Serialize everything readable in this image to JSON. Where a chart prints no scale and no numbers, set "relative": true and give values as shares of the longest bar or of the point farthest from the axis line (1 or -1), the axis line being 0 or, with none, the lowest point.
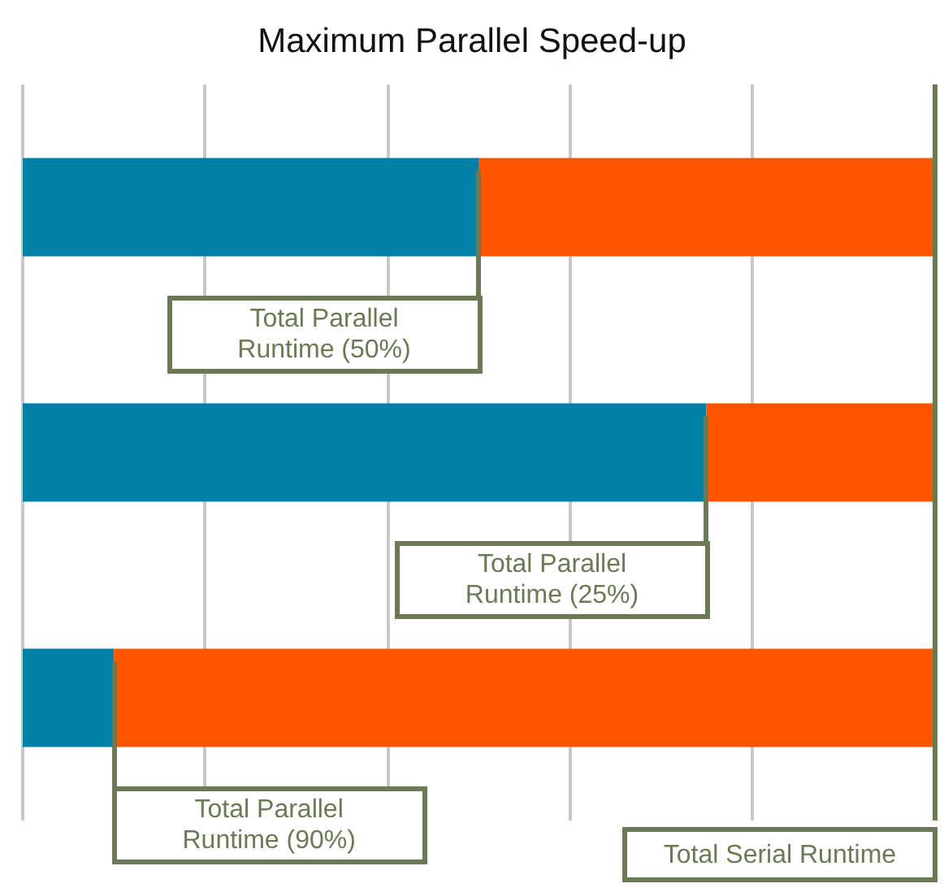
{
  "chart_data": {
    "type": "bar",
    "orientation": "horizontal",
    "stacked": true,
    "relative": true,
    "title": "Maximum Parallel Speed-up",
    "categories": [
      null,
      null,
      null
    ],
    "series": [
      {
        "color": "#0080a8",
        "values": [
          0.5,
          0.75,
          0.1
        ]
      },
      {
        "color": "#ff5500",
        "values": [
          0.5,
          0.25,
          0.9
        ]
      }
    ],
    "grid": "x",
    "annotations": [
      "Total Parallel\nRuntime (50%)",
      "Total Parallel\nRuntime (25%)",
      "Total Parallel\nRuntime (90%)"
    ],
    "ref_lines": [
      {
        "axis": "x",
        "value": 1,
        "label": "Total Serial Runtime",
        "color": "#6b7a55"
      }
    ]
  }
}
